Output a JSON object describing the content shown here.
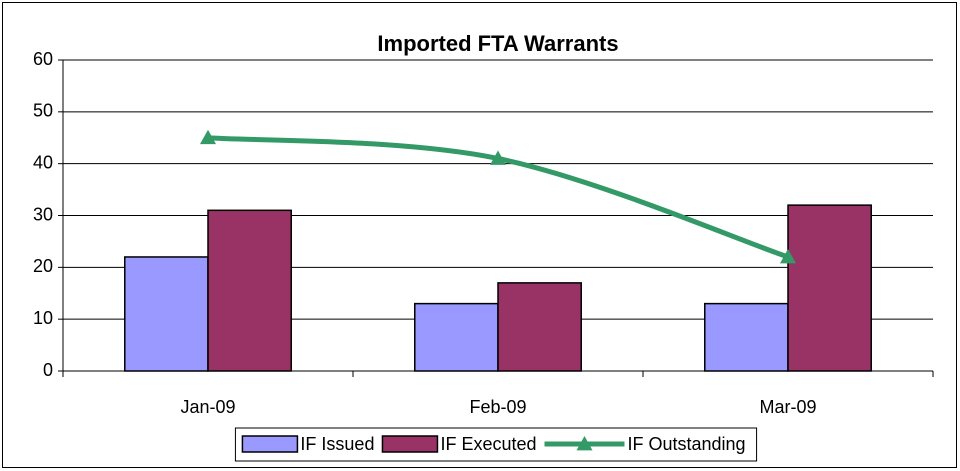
{
  "chart_data": {
    "type": "bar",
    "title": "Imported FTA Warrants",
    "categories": [
      "Jan-09",
      "Feb-09",
      "Mar-09"
    ],
    "series": [
      {
        "name": "IF Issued",
        "color": "#9999ff",
        "values": [
          22,
          13,
          13
        ]
      },
      {
        "name": "IF Executed",
        "color": "#993366",
        "values": [
          31,
          17,
          32
        ]
      },
      {
        "name": "IF Outstanding",
        "color": "#339966",
        "type": "line",
        "smooth": true,
        "values": [
          45,
          41,
          22
        ]
      }
    ],
    "ylim": [
      0,
      60
    ],
    "yticks": [
      0,
      10,
      20,
      30,
      40,
      50,
      60
    ],
    "grid": true,
    "legend": "bottom"
  }
}
